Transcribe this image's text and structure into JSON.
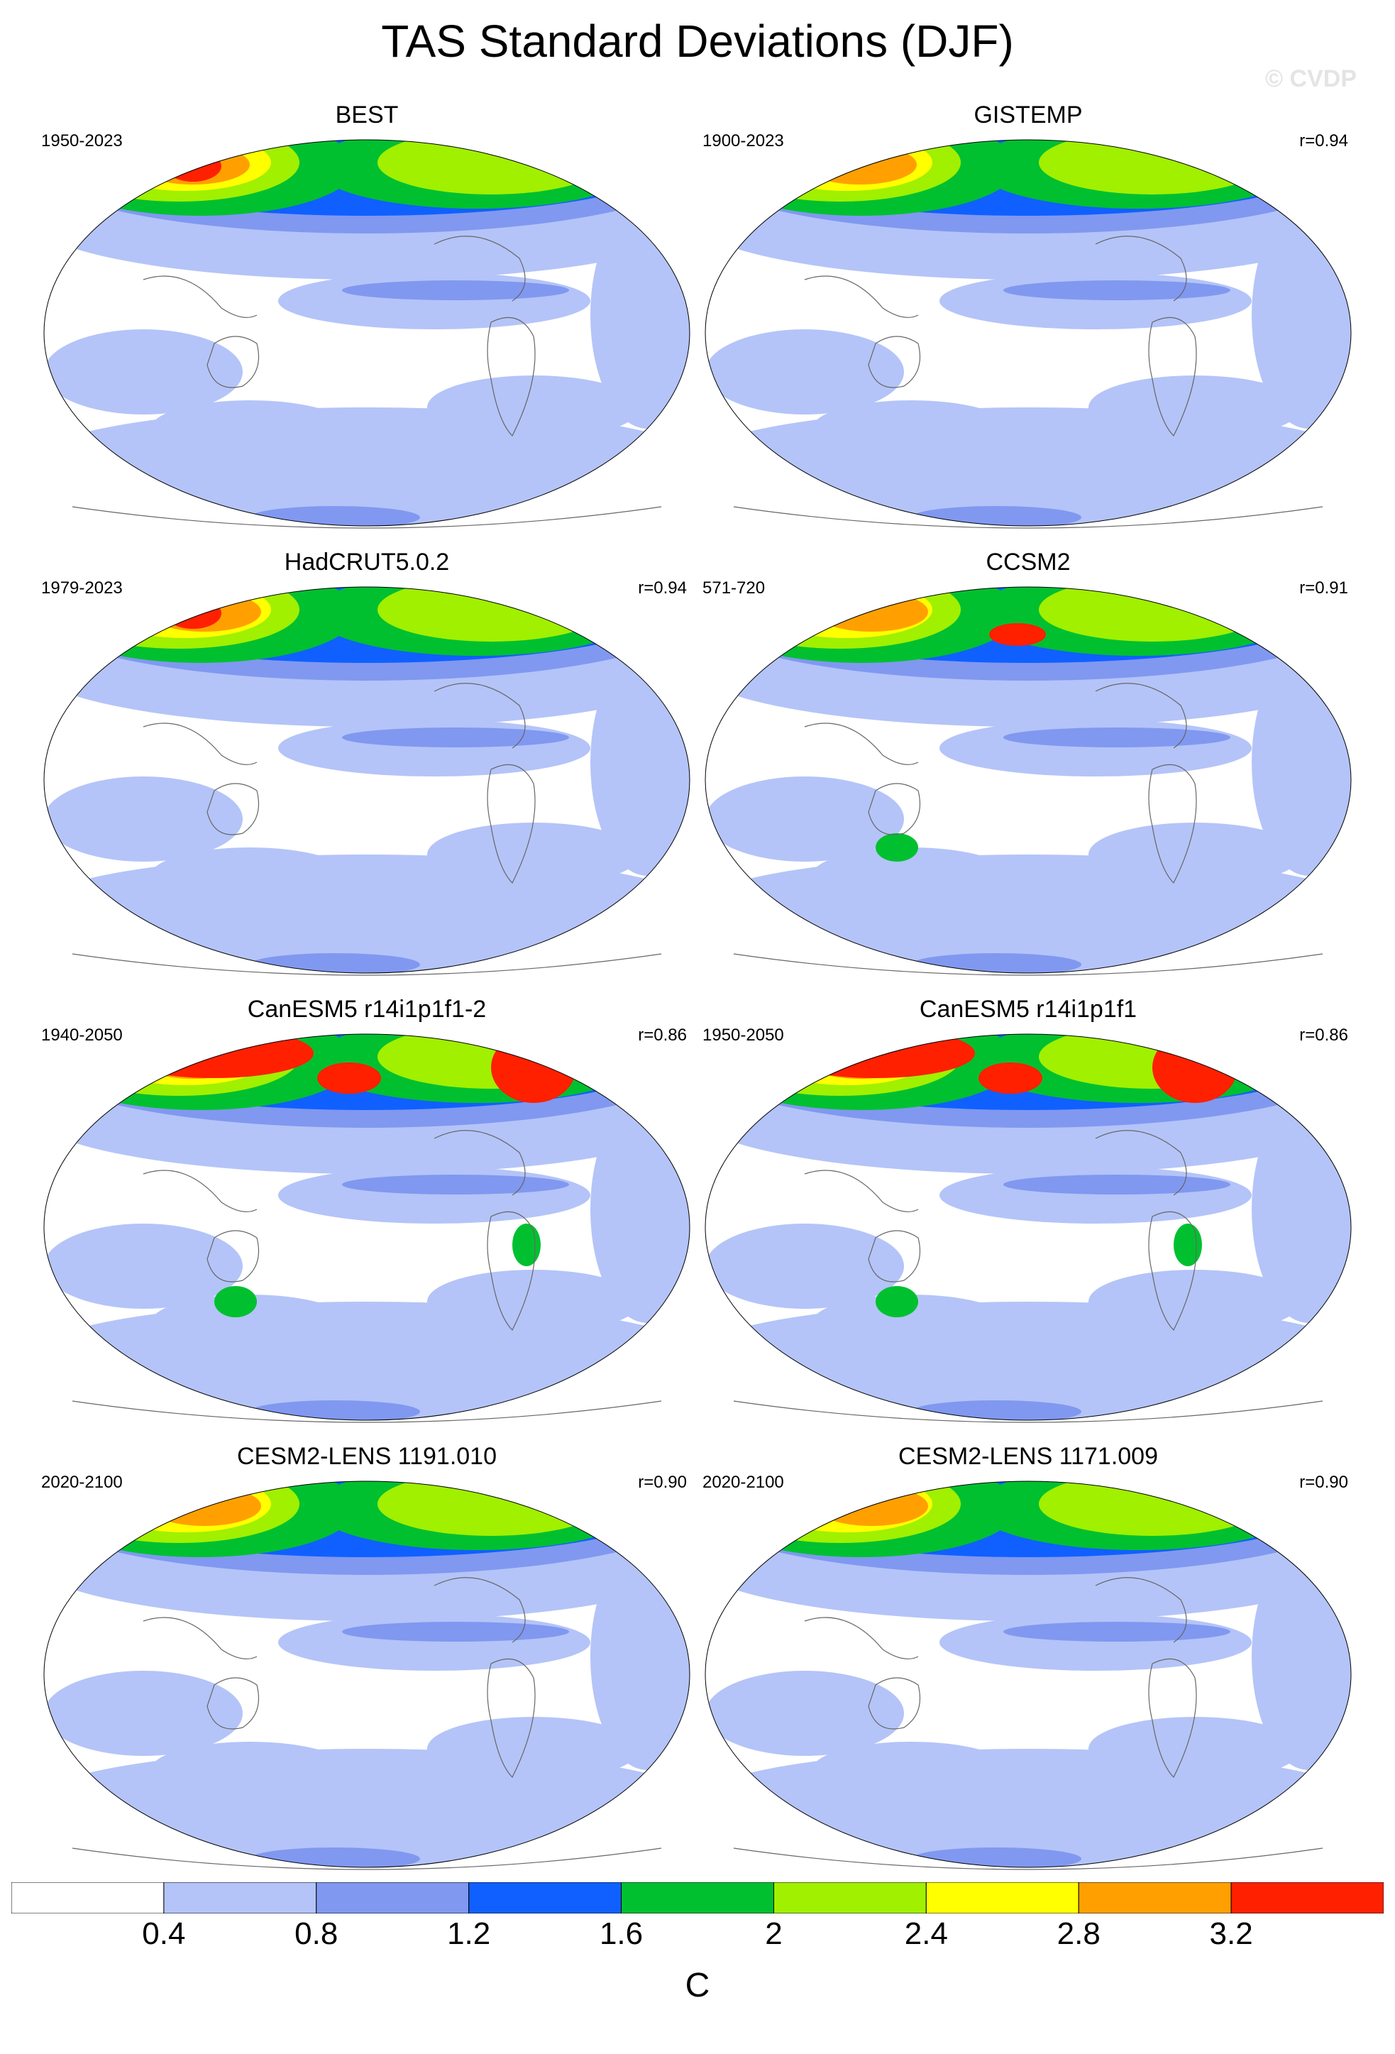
{
  "title": "TAS Standard Deviations (DJF)",
  "watermark": "© CVDP",
  "panels": [
    {
      "name": "BEST",
      "period": "1950-2023",
      "corr": ""
    },
    {
      "name": "GISTEMP",
      "period": "1900-2023",
      "corr": "r=0.94"
    },
    {
      "name": "HadCRUT5.0.2",
      "period": "1979-2023",
      "corr": "r=0.94"
    },
    {
      "name": "CCSM2",
      "period": "571-720",
      "corr": "r=0.91"
    },
    {
      "name": "CanESM5 r14i1p1f1-2",
      "period": "1940-2050",
      "corr": "r=0.86"
    },
    {
      "name": "CanESM5 r14i1p1f1",
      "period": "1950-2050",
      "corr": "r=0.86"
    },
    {
      "name": "CESM2-LENS 1191.010",
      "period": "2020-2100",
      "corr": "r=0.90"
    },
    {
      "name": "CESM2-LENS 1171.009",
      "period": "2020-2100",
      "corr": "r=0.90"
    }
  ],
  "colorbar": {
    "labels": [
      "0.4",
      "0.8",
      "1.2",
      "1.6",
      "2",
      "2.4",
      "2.8",
      "3.2"
    ],
    "colors": [
      "#ffffff",
      "#b4c4f8",
      "#8098f0",
      "#1060ff",
      "#00c030",
      "#a0f000",
      "#ffff00",
      "#ffa000",
      "#ff2000"
    ],
    "units": "C"
  },
  "map_colors": {
    "ocean_low": "#ffffff",
    "level_04": "#b4c4f8",
    "level_08": "#8098f0",
    "level_12": "#1060ff",
    "level_16": "#00c030",
    "level_20": "#a0f000",
    "level_24": "#ffff00",
    "level_28": "#ffa000",
    "level_32": "#ff2000",
    "coast": "#666666"
  }
}
